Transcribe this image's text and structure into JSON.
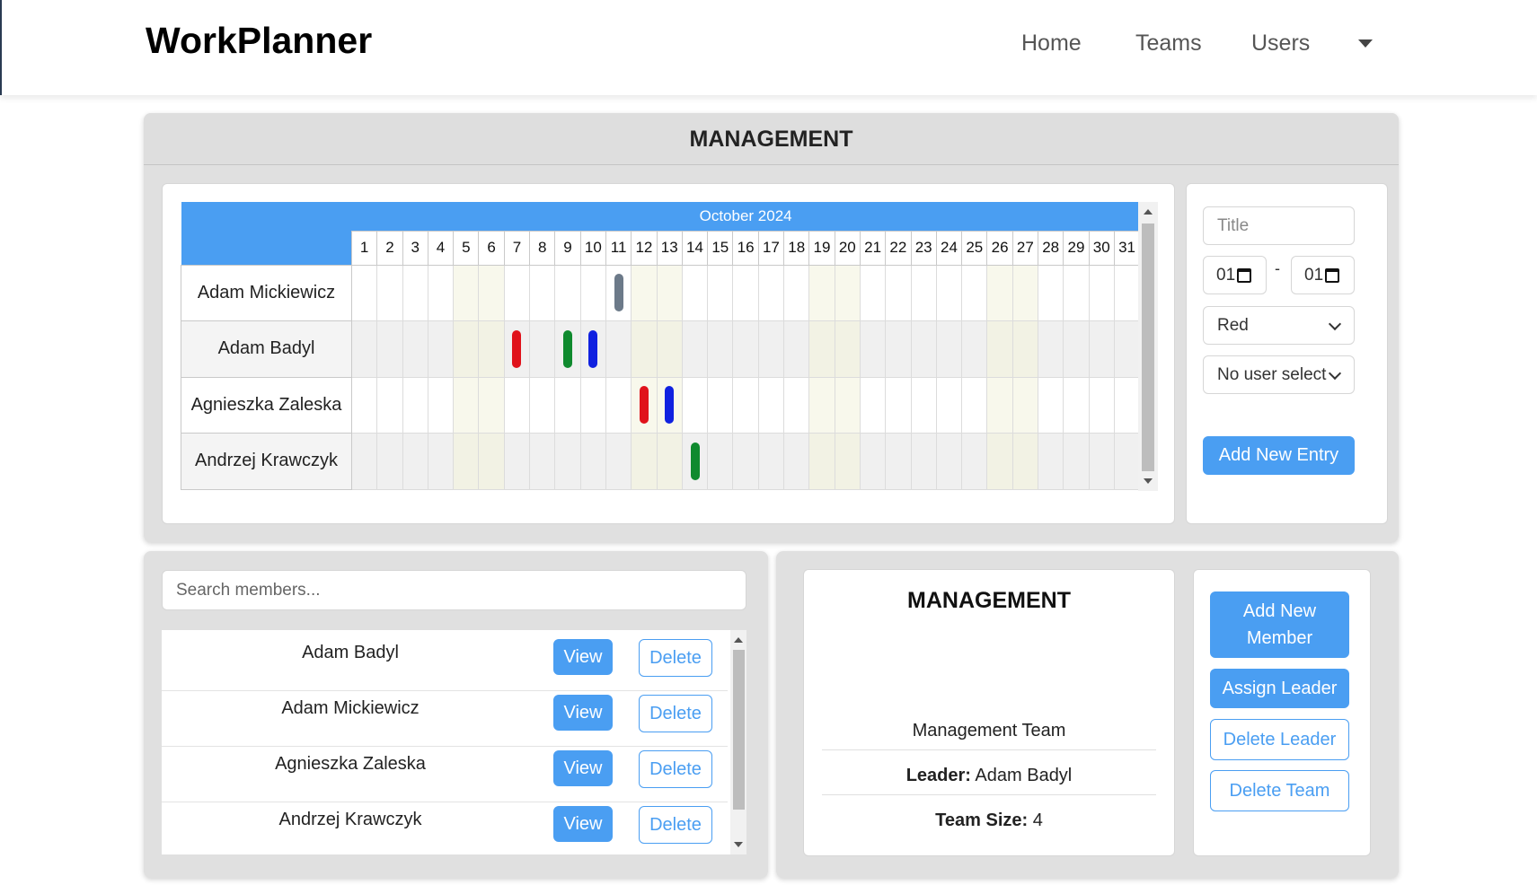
{
  "app": {
    "brand": "WorkPlanner"
  },
  "nav": {
    "items": [
      "Home",
      "Teams",
      "Users"
    ]
  },
  "panel": {
    "title": "MANAGEMENT"
  },
  "calendar": {
    "month_label": "October 2024",
    "days": [
      "1",
      "2",
      "3",
      "4",
      "5",
      "6",
      "7",
      "8",
      "9",
      "10",
      "11",
      "12",
      "13",
      "14",
      "15",
      "16",
      "17",
      "18",
      "19",
      "20",
      "21",
      "22",
      "23",
      "24",
      "25",
      "26",
      "27",
      "28",
      "29",
      "30",
      "31"
    ],
    "weekend_days": [
      5,
      6,
      12,
      13,
      19,
      20,
      26,
      27
    ],
    "rows": [
      {
        "name": "Adam Mickiewicz",
        "entries": [
          {
            "day": 11,
            "color": "#6c7a89"
          }
        ]
      },
      {
        "name": "Adam Badyl",
        "entries": [
          {
            "day": 7,
            "color": "#e0121b"
          },
          {
            "day": 9,
            "color": "#0f8a2e"
          },
          {
            "day": 10,
            "color": "#1021e0"
          }
        ]
      },
      {
        "name": "Agnieszka Zaleska",
        "entries": [
          {
            "day": 12,
            "color": "#e0121b"
          },
          {
            "day": 13,
            "color": "#1021e0"
          }
        ]
      },
      {
        "name": "Andrzej Krawczyk",
        "entries": [
          {
            "day": 14,
            "color": "#0f8a2e"
          }
        ]
      }
    ]
  },
  "entry_form": {
    "title_placeholder": "Title",
    "start_date_value": "01",
    "end_date_value": "01",
    "date_separator": "-",
    "color_value": "Red",
    "user_value": "No user select",
    "submit_label": "Add New Entry"
  },
  "members": {
    "search_placeholder": "Search members...",
    "view_label": "View",
    "delete_label": "Delete",
    "list": [
      "Adam Badyl",
      "Adam Mickiewicz",
      "Agnieszka Zaleska",
      "Andrzej Krawczyk"
    ]
  },
  "team": {
    "name": "MANAGEMENT",
    "description": "Management Team",
    "leader_label": "Leader:",
    "leader_value": "Adam Badyl",
    "size_label": "Team Size:",
    "size_value": "4"
  },
  "team_actions": {
    "add_member": "Add New Member",
    "assign_leader": "Assign Leader",
    "delete_leader": "Delete Leader",
    "delete_team": "Delete Team"
  },
  "colors": {
    "accent": "#4a9ef2",
    "panel": "#e0e0e0"
  }
}
